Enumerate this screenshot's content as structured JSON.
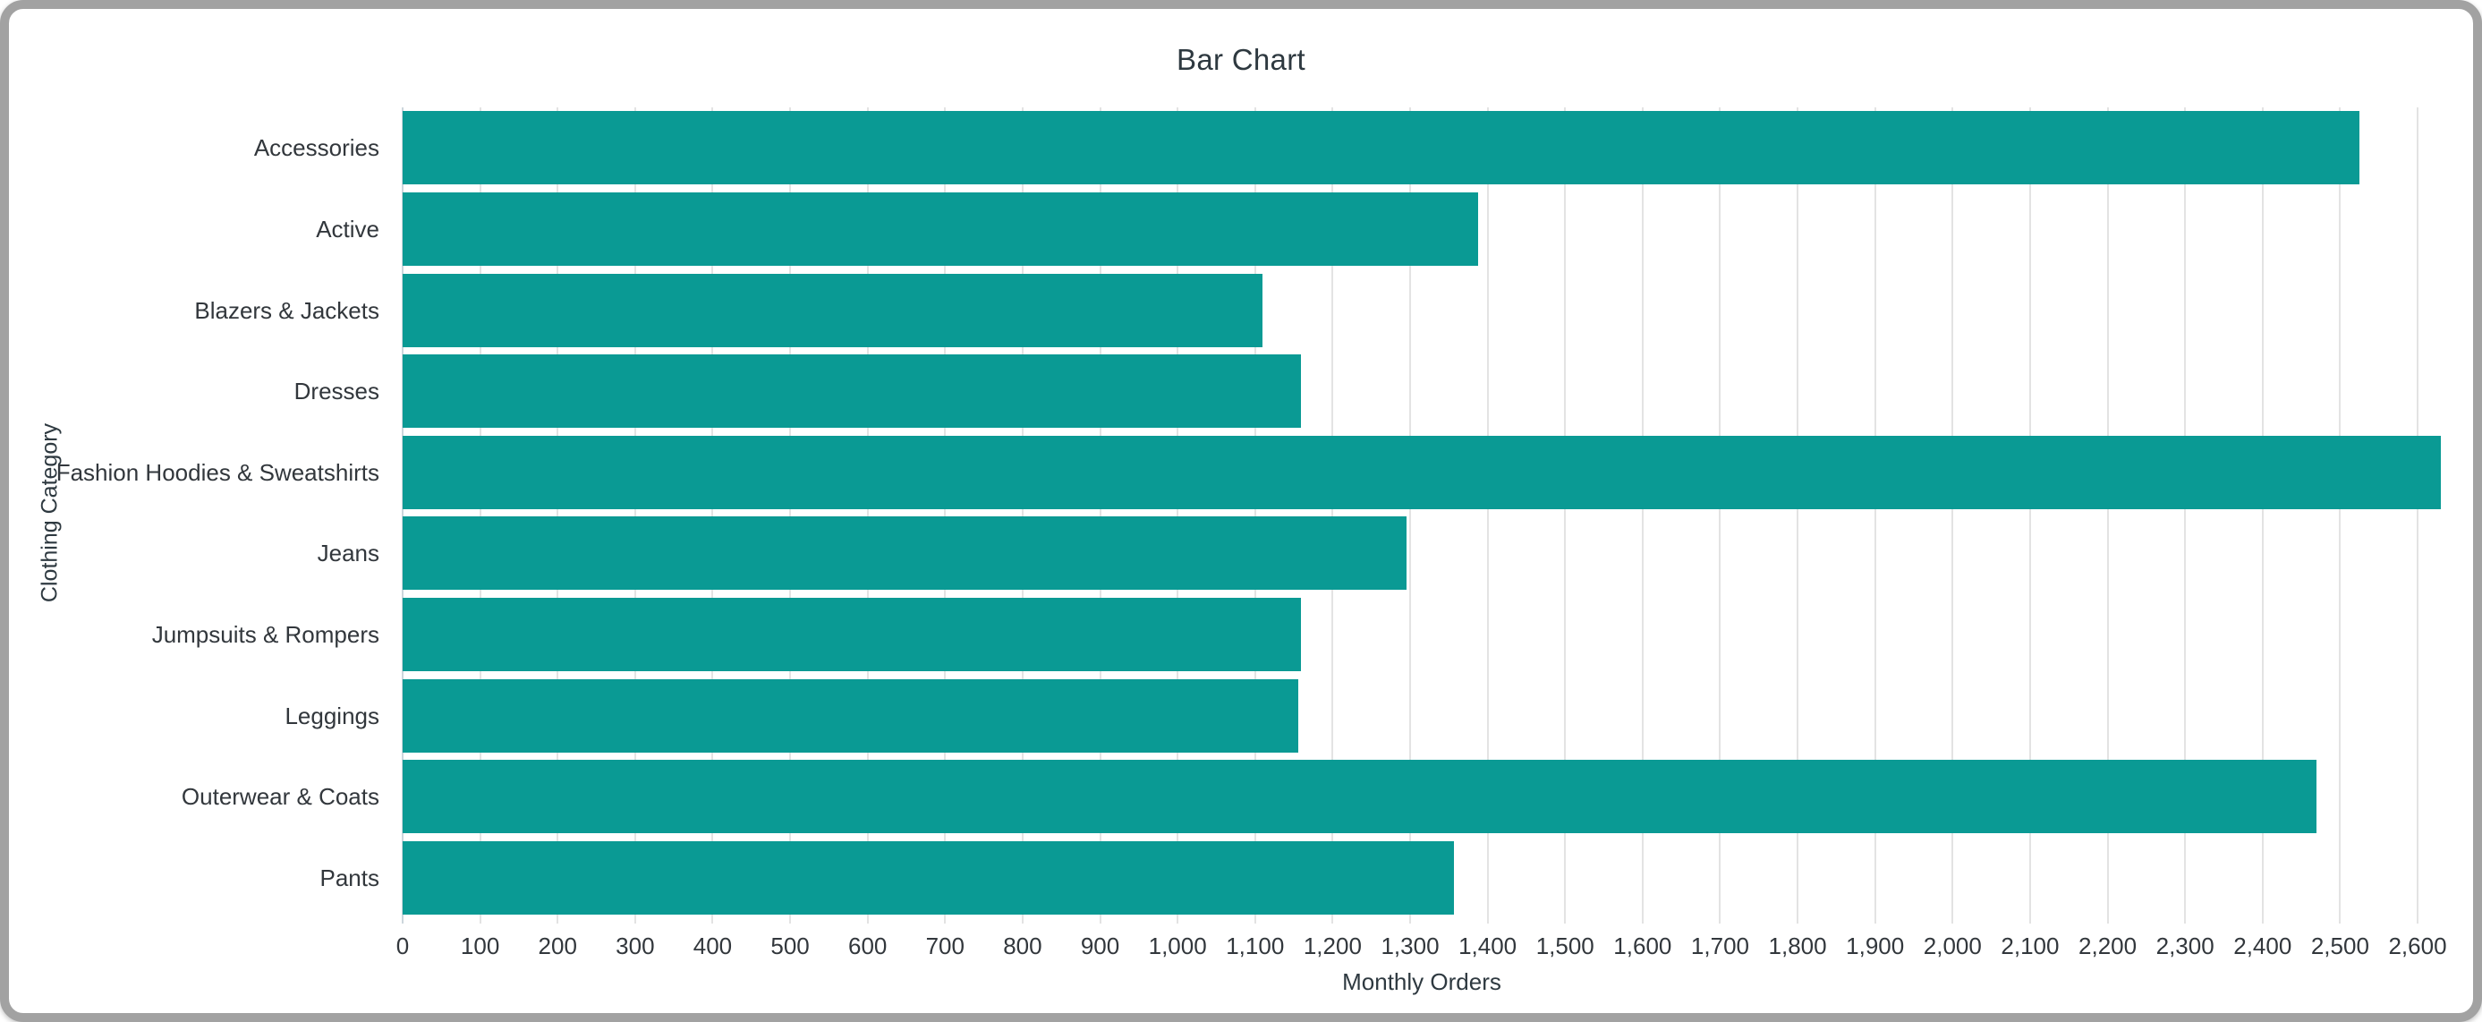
{
  "window": {
    "border_color": "#a2a2a2",
    "background_color": "#ffffff"
  },
  "chart_data": {
    "type": "bar",
    "orientation": "horizontal",
    "title": "Bar Chart",
    "xlabel": "Monthly Orders",
    "ylabel": "Clothing Category",
    "categories": [
      "Accessories",
      "Active",
      "Blazers & Jackets",
      "Dresses",
      "Fashion Hoodies & Sweatshirts",
      "Jeans",
      "Jumpsuits & Rompers",
      "Leggings",
      "Outerwear & Coats",
      "Pants"
    ],
    "values": [
      2525,
      1388,
      1110,
      1159,
      2630,
      1295,
      1159,
      1156,
      2470,
      1357
    ],
    "xlim": [
      0,
      2630
    ],
    "x_tick_start": 0,
    "x_tick_step": 100,
    "x_tick_max": 2600,
    "grid": true,
    "legend": "none",
    "bar_color": "#0a9a94",
    "title_color": "#2e3940",
    "label_color": "#32373c",
    "gridline_color": "#e3e3e3",
    "zero_axis_color": "#ccd6dc"
  }
}
